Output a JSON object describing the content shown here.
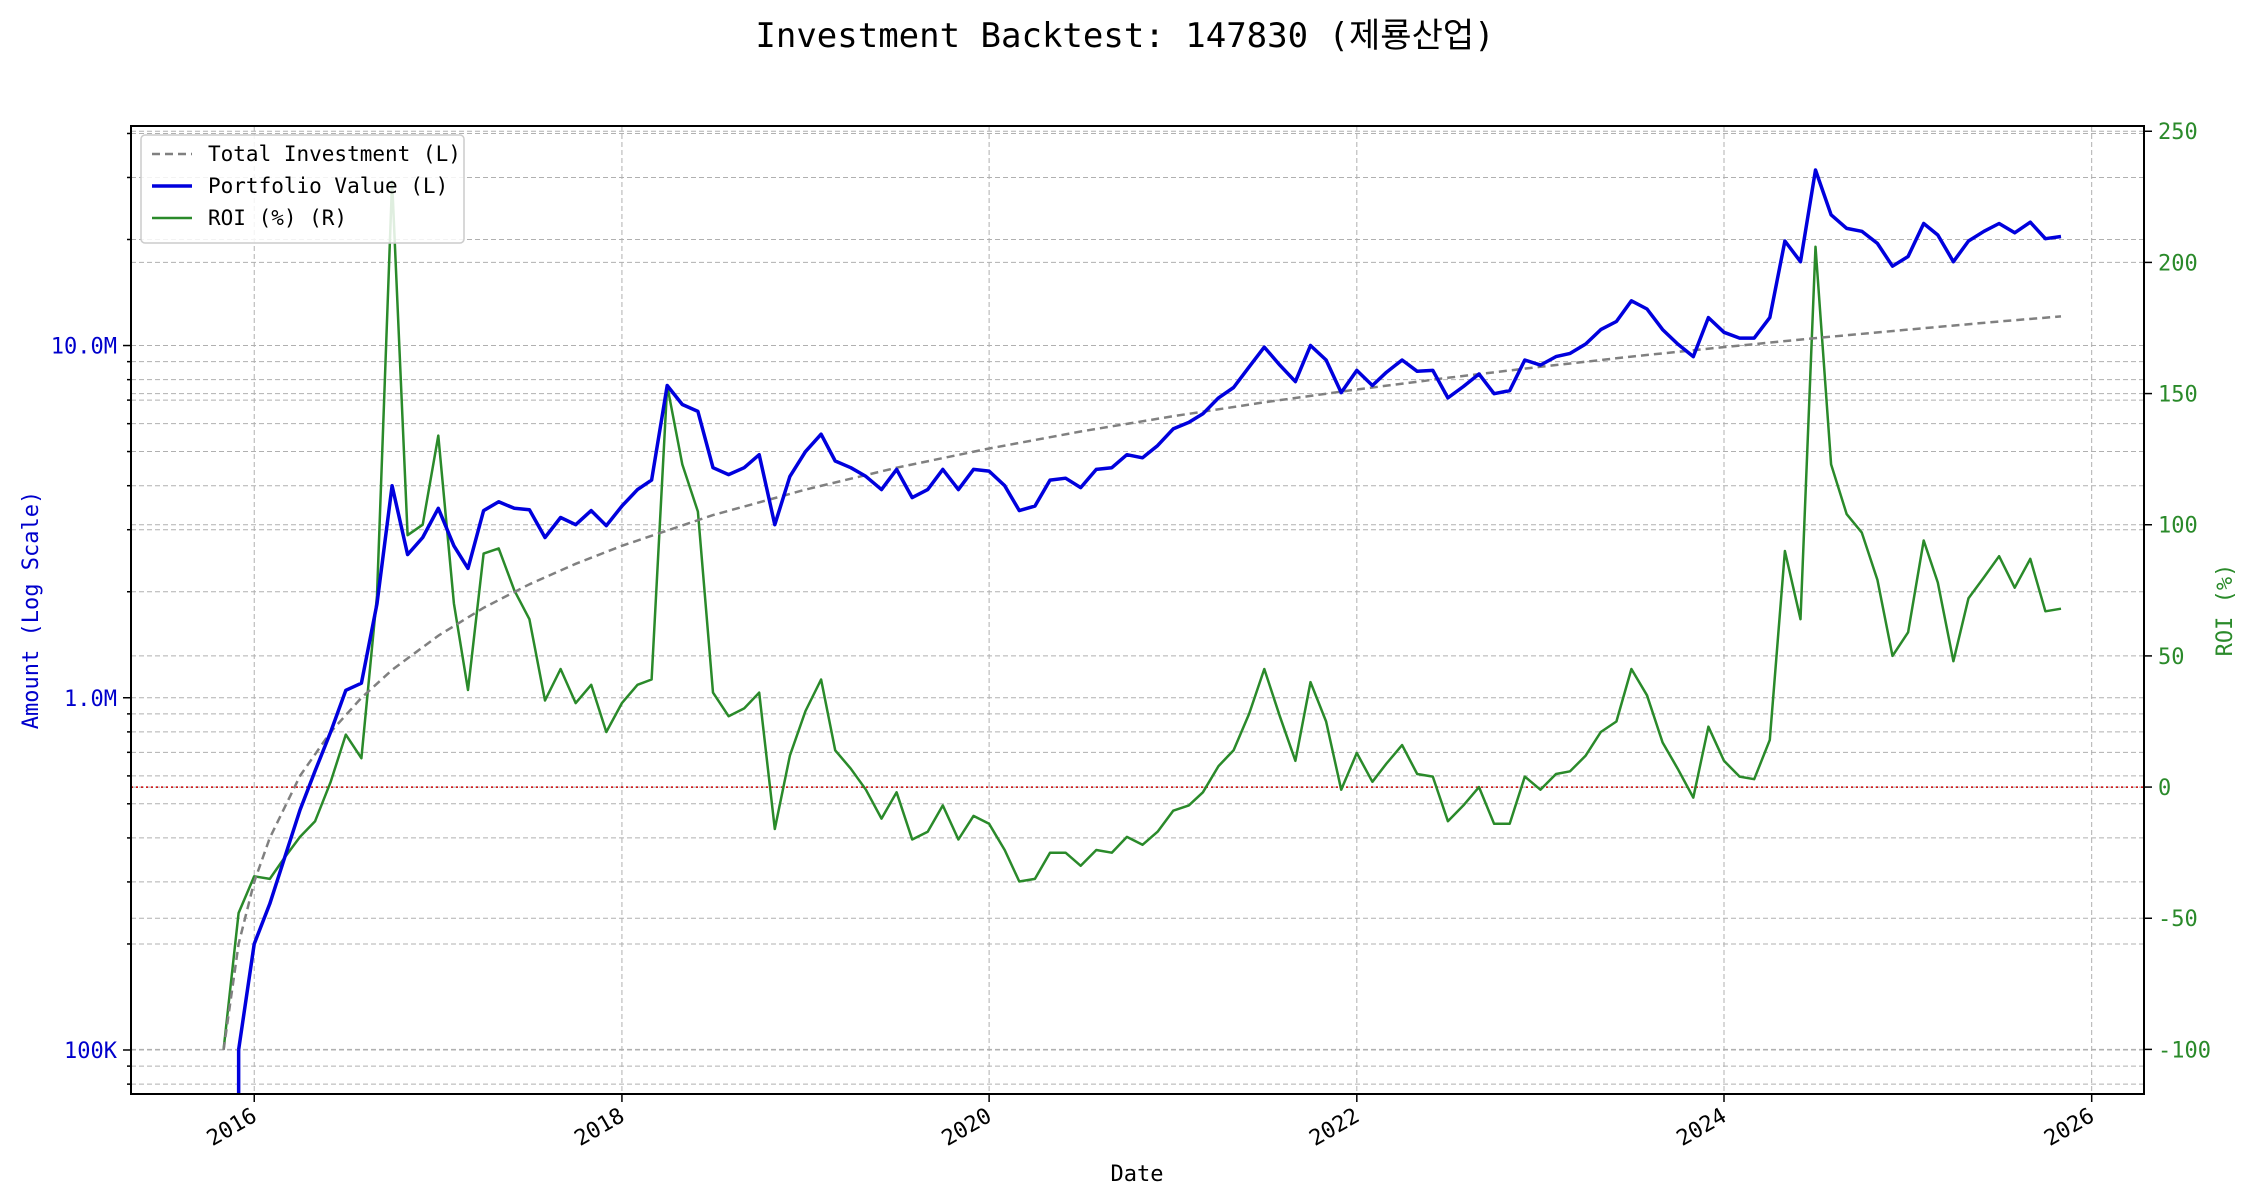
{
  "chart_data": {
    "type": "line",
    "title": "Investment Backtest: 147830 (제룡산업)",
    "xlabel": "Date",
    "ylabel_left": "Amount (Log Scale)",
    "ylabel_right": "ROI (%)",
    "x_ticks": [
      "2016",
      "2018",
      "2020",
      "2022",
      "2024",
      "2026"
    ],
    "y_left_ticks": [
      "100K",
      "1.0M",
      "10.0M"
    ],
    "y_right_ticks": [
      "-100",
      "-50",
      "0",
      "50",
      "100",
      "150",
      "200",
      "250"
    ],
    "y_left_scale": "log",
    "y_left_range": [
      75000,
      42000000
    ],
    "y_right_range": [
      -117,
      252
    ],
    "x_range": [
      "2015-05-01",
      "2026-04-15"
    ],
    "grid": true,
    "legend_position": "top-left",
    "zero_line_color": "#cc0000",
    "series": [
      {
        "name": "Total Investment (L)",
        "axis": "left",
        "color": "#808080",
        "style": "dashed",
        "points": [
          [
            "2015-11-01",
            100000
          ],
          [
            "2015-12-01",
            200000
          ],
          [
            "2016-01-01",
            300000
          ],
          [
            "2016-02-01",
            400000
          ],
          [
            "2016-04-01",
            600000
          ],
          [
            "2016-06-01",
            800000
          ],
          [
            "2016-08-01",
            1000000
          ],
          [
            "2016-10-01",
            1200000
          ],
          [
            "2017-01-01",
            1500000
          ],
          [
            "2017-04-01",
            1800000
          ],
          [
            "2017-07-01",
            2100000
          ],
          [
            "2017-10-01",
            2400000
          ],
          [
            "2018-01-01",
            2700000
          ],
          [
            "2018-07-01",
            3300000
          ],
          [
            "2019-01-01",
            3900000
          ],
          [
            "2019-07-01",
            4500000
          ],
          [
            "2020-01-01",
            5100000
          ],
          [
            "2020-07-01",
            5700000
          ],
          [
            "2021-01-01",
            6300000
          ],
          [
            "2021-07-01",
            6900000
          ],
          [
            "2022-01-01",
            7500000
          ],
          [
            "2022-07-01",
            8100000
          ],
          [
            "2023-01-01",
            8700000
          ],
          [
            "2023-07-01",
            9300000
          ],
          [
            "2024-01-01",
            9900000
          ],
          [
            "2024-07-01",
            10500000
          ],
          [
            "2025-01-01",
            11100000
          ],
          [
            "2025-07-01",
            11700000
          ],
          [
            "2025-11-01",
            12100000
          ]
        ]
      },
      {
        "name": "Portfolio Value (L)",
        "axis": "left",
        "color": "#0000dd",
        "style": "solid",
        "points": [
          [
            "2015-12-01",
            100000
          ],
          [
            "2016-01-01",
            200000
          ],
          [
            "2016-02-01",
            260000
          ],
          [
            "2016-03-01",
            350000
          ],
          [
            "2016-04-01",
            480000
          ],
          [
            "2016-05-01",
            620000
          ],
          [
            "2016-06-01",
            800000
          ],
          [
            "2016-07-01",
            1050000
          ],
          [
            "2016-08-01",
            1100000
          ],
          [
            "2016-09-01",
            1850000
          ],
          [
            "2016-10-01",
            4000000
          ],
          [
            "2016-11-01",
            2550000
          ],
          [
            "2016-12-01",
            2850000
          ],
          [
            "2017-01-01",
            3450000
          ],
          [
            "2017-02-01",
            2700000
          ],
          [
            "2017-03-01",
            2330000
          ],
          [
            "2017-04-01",
            3400000
          ],
          [
            "2017-05-01",
            3600000
          ],
          [
            "2017-06-01",
            3450000
          ],
          [
            "2017-07-01",
            3420000
          ],
          [
            "2017-08-01",
            2850000
          ],
          [
            "2017-09-01",
            3250000
          ],
          [
            "2017-10-01",
            3100000
          ],
          [
            "2017-11-01",
            3400000
          ],
          [
            "2017-12-01",
            3080000
          ],
          [
            "2018-01-01",
            3500000
          ],
          [
            "2018-02-01",
            3900000
          ],
          [
            "2018-03-01",
            4150000
          ],
          [
            "2018-04-01",
            7700000
          ],
          [
            "2018-05-01",
            6800000
          ],
          [
            "2018-06-01",
            6500000
          ],
          [
            "2018-07-01",
            4500000
          ],
          [
            "2018-08-01",
            4300000
          ],
          [
            "2018-09-01",
            4500000
          ],
          [
            "2018-10-01",
            4900000
          ],
          [
            "2018-11-01",
            3100000
          ],
          [
            "2018-12-01",
            4250000
          ],
          [
            "2019-01-01",
            5000000
          ],
          [
            "2019-02-01",
            5600000
          ],
          [
            "2019-03-01",
            4700000
          ],
          [
            "2019-04-01",
            4500000
          ],
          [
            "2019-05-01",
            4250000
          ],
          [
            "2019-06-01",
            3900000
          ],
          [
            "2019-07-01",
            4450000
          ],
          [
            "2019-08-01",
            3700000
          ],
          [
            "2019-09-01",
            3900000
          ],
          [
            "2019-10-01",
            4450000
          ],
          [
            "2019-11-01",
            3900000
          ],
          [
            "2019-12-01",
            4450000
          ],
          [
            "2020-01-01",
            4400000
          ],
          [
            "2020-02-01",
            4000000
          ],
          [
            "2020-03-01",
            3400000
          ],
          [
            "2020-04-01",
            3500000
          ],
          [
            "2020-05-01",
            4150000
          ],
          [
            "2020-06-01",
            4200000
          ],
          [
            "2020-07-01",
            3950000
          ],
          [
            "2020-08-01",
            4450000
          ],
          [
            "2020-09-01",
            4500000
          ],
          [
            "2020-10-01",
            4900000
          ],
          [
            "2020-11-01",
            4800000
          ],
          [
            "2020-12-01",
            5200000
          ],
          [
            "2021-01-01",
            5800000
          ],
          [
            "2021-02-01",
            6050000
          ],
          [
            "2021-03-01",
            6400000
          ],
          [
            "2021-04-01",
            7100000
          ],
          [
            "2021-05-01",
            7600000
          ],
          [
            "2021-06-01",
            8700000
          ],
          [
            "2021-07-01",
            9900000
          ],
          [
            "2021-08-01",
            8800000
          ],
          [
            "2021-09-01",
            7900000
          ],
          [
            "2021-10-01",
            10000000
          ],
          [
            "2021-11-01",
            9100000
          ],
          [
            "2021-12-01",
            7350000
          ],
          [
            "2022-01-01",
            8500000
          ],
          [
            "2022-02-01",
            7700000
          ],
          [
            "2022-03-01",
            8400000
          ],
          [
            "2022-04-01",
            9100000
          ],
          [
            "2022-05-01",
            8450000
          ],
          [
            "2022-06-01",
            8500000
          ],
          [
            "2022-07-01",
            7100000
          ],
          [
            "2022-08-01",
            7650000
          ],
          [
            "2022-09-01",
            8300000
          ],
          [
            "2022-10-01",
            7300000
          ],
          [
            "2022-11-01",
            7450000
          ],
          [
            "2022-12-01",
            9100000
          ],
          [
            "2023-01-01",
            8800000
          ],
          [
            "2023-02-01",
            9300000
          ],
          [
            "2023-03-01",
            9500000
          ],
          [
            "2023-04-01",
            10100000
          ],
          [
            "2023-05-01",
            11100000
          ],
          [
            "2023-06-01",
            11700000
          ],
          [
            "2023-07-01",
            13400000
          ],
          [
            "2023-08-01",
            12700000
          ],
          [
            "2023-09-01",
            11100000
          ],
          [
            "2023-10-01",
            10100000
          ],
          [
            "2023-11-01",
            9300000
          ],
          [
            "2023-12-01",
            12000000
          ],
          [
            "2024-01-01",
            10900000
          ],
          [
            "2024-02-01",
            10500000
          ],
          [
            "2024-03-01",
            10500000
          ],
          [
            "2024-04-01",
            12000000
          ],
          [
            "2024-05-01",
            19800000
          ],
          [
            "2024-06-01",
            17300000
          ],
          [
            "2024-07-01",
            31500000
          ],
          [
            "2024-08-01",
            23500000
          ],
          [
            "2024-09-01",
            21500000
          ],
          [
            "2024-10-01",
            21100000
          ],
          [
            "2024-11-01",
            19500000
          ],
          [
            "2024-12-01",
            16800000
          ],
          [
            "2025-01-01",
            17900000
          ],
          [
            "2025-02-01",
            22200000
          ],
          [
            "2025-03-01",
            20600000
          ],
          [
            "2025-04-01",
            17300000
          ],
          [
            "2025-05-01",
            19800000
          ],
          [
            "2025-06-01",
            21100000
          ],
          [
            "2025-07-01",
            22200000
          ],
          [
            "2025-08-01",
            20900000
          ],
          [
            "2025-09-01",
            22400000
          ],
          [
            "2025-10-01",
            20100000
          ],
          [
            "2025-11-01",
            20400000
          ]
        ]
      },
      {
        "name": "ROI (%) (R)",
        "axis": "right",
        "color": "#2a8a2a",
        "style": "solid",
        "points": [
          [
            "2015-11-01",
            -100
          ],
          [
            "2015-12-01",
            -48
          ],
          [
            "2016-01-01",
            -34
          ],
          [
            "2016-02-01",
            -35
          ],
          [
            "2016-03-01",
            -27
          ],
          [
            "2016-04-01",
            -19
          ],
          [
            "2016-05-01",
            -13
          ],
          [
            "2016-06-01",
            2
          ],
          [
            "2016-07-01",
            20
          ],
          [
            "2016-08-01",
            11
          ],
          [
            "2016-09-01",
            73
          ],
          [
            "2016-10-01",
            231
          ],
          [
            "2016-11-01",
            96
          ],
          [
            "2016-12-01",
            100
          ],
          [
            "2017-01-01",
            134
          ],
          [
            "2017-02-01",
            70
          ],
          [
            "2017-03-01",
            37
          ],
          [
            "2017-04-01",
            89
          ],
          [
            "2017-05-01",
            91
          ],
          [
            "2017-06-01",
            75
          ],
          [
            "2017-07-01",
            64
          ],
          [
            "2017-08-01",
            33
          ],
          [
            "2017-09-01",
            45
          ],
          [
            "2017-10-01",
            32
          ],
          [
            "2017-11-01",
            39
          ],
          [
            "2017-12-01",
            21
          ],
          [
            "2018-01-01",
            32
          ],
          [
            "2018-02-01",
            39
          ],
          [
            "2018-03-01",
            41
          ],
          [
            "2018-04-01",
            153
          ],
          [
            "2018-05-01",
            123
          ],
          [
            "2018-06-01",
            105
          ],
          [
            "2018-07-01",
            36
          ],
          [
            "2018-08-01",
            27
          ],
          [
            "2018-09-01",
            30
          ],
          [
            "2018-10-01",
            36
          ],
          [
            "2018-11-01",
            -16
          ],
          [
            "2018-12-01",
            12
          ],
          [
            "2019-01-01",
            29
          ],
          [
            "2019-02-01",
            41
          ],
          [
            "2019-03-01",
            14
          ],
          [
            "2019-04-01",
            7
          ],
          [
            "2019-05-01",
            -1
          ],
          [
            "2019-06-01",
            -12
          ],
          [
            "2019-07-01",
            -2
          ],
          [
            "2019-08-01",
            -20
          ],
          [
            "2019-09-01",
            -17
          ],
          [
            "2019-10-01",
            -7
          ],
          [
            "2019-11-01",
            -20
          ],
          [
            "2019-12-01",
            -11
          ],
          [
            "2020-01-01",
            -14
          ],
          [
            "2020-02-01",
            -24
          ],
          [
            "2020-03-01",
            -36
          ],
          [
            "2020-04-01",
            -35
          ],
          [
            "2020-05-01",
            -25
          ],
          [
            "2020-06-01",
            -25
          ],
          [
            "2020-07-01",
            -30
          ],
          [
            "2020-08-01",
            -24
          ],
          [
            "2020-09-01",
            -25
          ],
          [
            "2020-10-01",
            -19
          ],
          [
            "2020-11-01",
            -22
          ],
          [
            "2020-12-01",
            -17
          ],
          [
            "2021-01-01",
            -9
          ],
          [
            "2021-02-01",
            -7
          ],
          [
            "2021-03-01",
            -2
          ],
          [
            "2021-04-01",
            8
          ],
          [
            "2021-05-01",
            14
          ],
          [
            "2021-06-01",
            28
          ],
          [
            "2021-07-01",
            45
          ],
          [
            "2021-08-01",
            27
          ],
          [
            "2021-09-01",
            10
          ],
          [
            "2021-10-01",
            40
          ],
          [
            "2021-11-01",
            25
          ],
          [
            "2021-12-01",
            -1
          ],
          [
            "2022-01-01",
            13
          ],
          [
            "2022-02-01",
            2
          ],
          [
            "2022-03-01",
            9
          ],
          [
            "2022-04-01",
            16
          ],
          [
            "2022-05-01",
            5
          ],
          [
            "2022-06-01",
            4
          ],
          [
            "2022-07-01",
            -13
          ],
          [
            "2022-08-01",
            -7
          ],
          [
            "2022-09-01",
            0
          ],
          [
            "2022-10-01",
            -14
          ],
          [
            "2022-11-01",
            -14
          ],
          [
            "2022-12-01",
            4
          ],
          [
            "2023-01-01",
            -1
          ],
          [
            "2023-02-01",
            5
          ],
          [
            "2023-03-01",
            6
          ],
          [
            "2023-04-01",
            12
          ],
          [
            "2023-05-01",
            21
          ],
          [
            "2023-06-01",
            25
          ],
          [
            "2023-07-01",
            45
          ],
          [
            "2023-08-01",
            35
          ],
          [
            "2023-09-01",
            17
          ],
          [
            "2023-10-01",
            7
          ],
          [
            "2023-11-01",
            -4
          ],
          [
            "2023-12-01",
            23
          ],
          [
            "2024-01-01",
            10
          ],
          [
            "2024-02-01",
            4
          ],
          [
            "2024-03-01",
            3
          ],
          [
            "2024-04-01",
            18
          ],
          [
            "2024-05-01",
            90
          ],
          [
            "2024-06-01",
            64
          ],
          [
            "2024-07-01",
            206
          ],
          [
            "2024-08-01",
            123
          ],
          [
            "2024-09-01",
            104
          ],
          [
            "2024-10-01",
            97
          ],
          [
            "2024-11-01",
            79
          ],
          [
            "2024-12-01",
            50
          ],
          [
            "2025-01-01",
            59
          ],
          [
            "2025-02-01",
            94
          ],
          [
            "2025-03-01",
            78
          ],
          [
            "2025-04-01",
            48
          ],
          [
            "2025-05-01",
            72
          ],
          [
            "2025-06-01",
            80
          ],
          [
            "2025-07-01",
            88
          ],
          [
            "2025-08-01",
            76
          ],
          [
            "2025-09-01",
            87
          ],
          [
            "2025-10-01",
            67
          ],
          [
            "2025-11-01",
            68
          ]
        ]
      }
    ]
  }
}
